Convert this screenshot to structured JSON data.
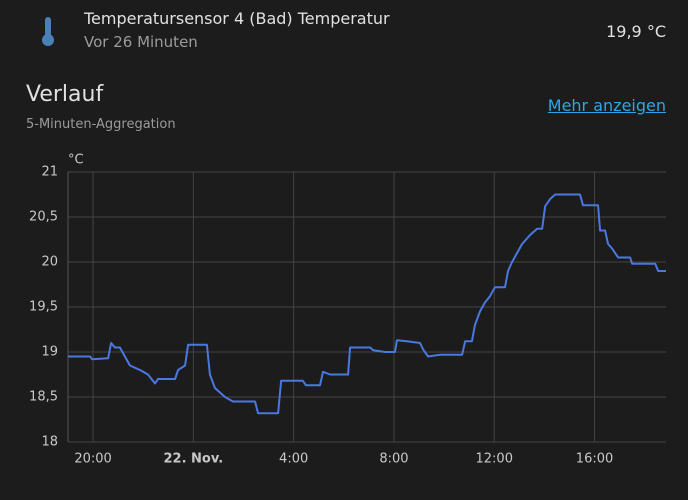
{
  "header": {
    "title": "Temperatursensor 4 (Bad) Temperatur",
    "subtitle": "Vor 26 Minuten",
    "state": "19,9 °C"
  },
  "section": {
    "title": "Verlauf",
    "subtitle": "5-Minuten-Aggregation",
    "link": "Mehr anzeigen"
  },
  "chart_data": {
    "type": "line",
    "y_unit": "°C",
    "grid": true,
    "xlim": [
      19,
      42.85
    ],
    "xticks": [
      {
        "value": 20,
        "label": "20:00"
      },
      {
        "value": 24,
        "label": "22. Nov."
      },
      {
        "value": 28,
        "label": "4:00"
      },
      {
        "value": 32,
        "label": "8:00"
      },
      {
        "value": 36,
        "label": "12:00"
      },
      {
        "value": 40,
        "label": "16:00"
      }
    ],
    "ylim": [
      18,
      21
    ],
    "yticks": [
      18,
      {
        "value": 18.5,
        "label": "18,5"
      },
      19,
      {
        "value": 19.5,
        "label": "19,5"
      },
      20,
      {
        "value": 20.5,
        "label": "20,5"
      },
      21
    ],
    "series": [
      {
        "color": "#4a78e0",
        "x": [
          19.0,
          19.88,
          19.96,
          20.6,
          20.72,
          20.87,
          21.07,
          21.27,
          21.47,
          21.87,
          22.19,
          22.47,
          22.59,
          23.27,
          23.39,
          23.67,
          23.79,
          24.54,
          24.66,
          24.86,
          25.06,
          25.26,
          25.58,
          26.46,
          26.58,
          27.38,
          27.5,
          28.37,
          28.49,
          29.05,
          29.17,
          29.45,
          30.17,
          30.25,
          31.05,
          31.17,
          31.64,
          32.04,
          32.12,
          32.52,
          33.04,
          33.16,
          33.36,
          33.84,
          34.72,
          34.84,
          35.11,
          35.23,
          35.43,
          35.63,
          35.83,
          36.03,
          36.43,
          36.55,
          36.71,
          36.91,
          37.11,
          37.43,
          37.71,
          37.91,
          38.03,
          38.23,
          38.43,
          39.42,
          39.54,
          40.14,
          40.22,
          40.42,
          40.54,
          40.7,
          40.94,
          41.42,
          41.5,
          42.42,
          42.54,
          42.85
        ],
        "values": [
          18.95,
          18.95,
          18.92,
          18.93,
          19.1,
          19.05,
          19.05,
          18.95,
          18.85,
          18.8,
          18.75,
          18.65,
          18.7,
          18.7,
          18.8,
          18.85,
          19.08,
          19.08,
          18.75,
          18.6,
          18.55,
          18.5,
          18.45,
          18.45,
          18.32,
          18.32,
          18.68,
          18.68,
          18.63,
          18.63,
          18.78,
          18.75,
          18.75,
          19.05,
          19.05,
          19.02,
          19.0,
          19.0,
          19.13,
          19.12,
          19.1,
          19.03,
          18.95,
          18.97,
          18.97,
          19.12,
          19.12,
          19.3,
          19.45,
          19.55,
          19.62,
          19.72,
          19.72,
          19.9,
          20.0,
          20.1,
          20.2,
          20.3,
          20.37,
          20.37,
          20.62,
          20.7,
          20.75,
          20.75,
          20.63,
          20.63,
          20.35,
          20.35,
          20.2,
          20.15,
          20.05,
          20.05,
          19.98,
          19.98,
          19.9,
          19.9
        ]
      }
    ]
  }
}
